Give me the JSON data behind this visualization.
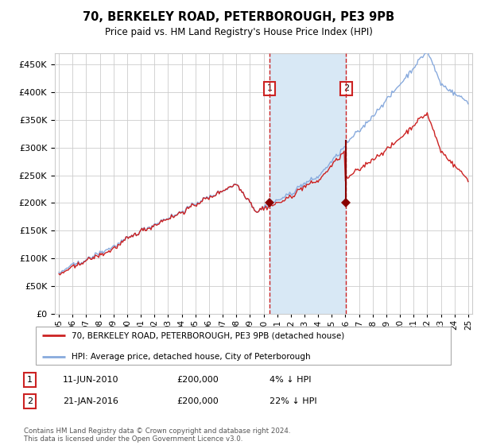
{
  "title": "70, BERKELEY ROAD, PETERBOROUGH, PE3 9PB",
  "subtitle": "Price paid vs. HM Land Registry's House Price Index (HPI)",
  "legend_line1": "70, BERKELEY ROAD, PETERBOROUGH, PE3 9PB (detached house)",
  "legend_line2": "HPI: Average price, detached house, City of Peterborough",
  "footnote": "Contains HM Land Registry data © Crown copyright and database right 2024.\nThis data is licensed under the Open Government Licence v3.0.",
  "purchase1_date": "11-JUN-2010",
  "purchase1_price": 200000,
  "purchase1_hpi": "4% ↓ HPI",
  "purchase2_date": "21-JAN-2016",
  "purchase2_price": 200000,
  "purchase2_hpi": "22% ↓ HPI",
  "hpi_color": "#88aadd",
  "house_color": "#cc2222",
  "point_color": "#880000",
  "vline_color": "#cc2222",
  "shade_color": "#d8e8f5",
  "grid_color": "#cccccc",
  "bg_color": "#ffffff",
  "ylim": [
    0,
    470000
  ],
  "yticks": [
    0,
    50000,
    100000,
    150000,
    200000,
    250000,
    300000,
    350000,
    400000,
    450000
  ],
  "start_year": 1995,
  "end_year": 2025,
  "purchase1_x": 2010.44,
  "purchase2_x": 2016.05,
  "xtick_labels": [
    "95",
    "96",
    "97",
    "98",
    "99",
    "00",
    "01",
    "02",
    "03",
    "04",
    "05",
    "06",
    "07",
    "08",
    "09",
    "10",
    "11",
    "12",
    "13",
    "14",
    "15",
    "16",
    "17",
    "18",
    "19",
    "20",
    "21",
    "22",
    "23",
    "24",
    "25"
  ],
  "xtick_years": [
    1995,
    1996,
    1997,
    1998,
    1999,
    2000,
    2001,
    2002,
    2003,
    2004,
    2005,
    2006,
    2007,
    2008,
    2009,
    2010,
    2011,
    2012,
    2013,
    2014,
    2015,
    2016,
    2017,
    2018,
    2019,
    2020,
    2021,
    2022,
    2023,
    2024,
    2025
  ]
}
